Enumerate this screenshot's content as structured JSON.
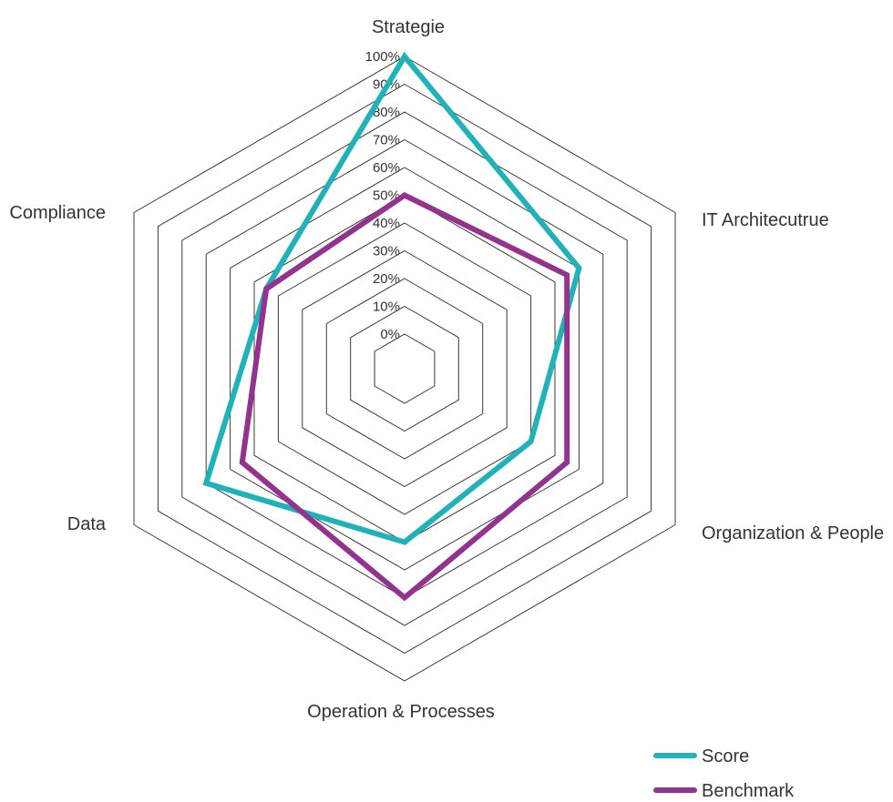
{
  "chart_data": {
    "type": "radar",
    "categories": [
      "Strategie",
      "IT Architecutrue",
      "Organization & People",
      "Operation & Processes",
      "Data",
      "Compliance"
    ],
    "ticks": [
      "0%",
      "10%",
      "20%",
      "30%",
      "40%",
      "50%",
      "60%",
      "70%",
      "80%",
      "90%",
      "100%"
    ],
    "rlim": [
      0,
      100
    ],
    "grid": true,
    "legend_position": "bottom-right",
    "series": [
      {
        "name": "Score",
        "color": "#1fb3b9",
        "values": [
          100,
          60,
          40,
          50,
          70,
          45
        ]
      },
      {
        "name": "Benchmark",
        "color": "#93338f",
        "values": [
          50,
          55,
          55,
          70,
          55,
          45
        ]
      }
    ]
  }
}
